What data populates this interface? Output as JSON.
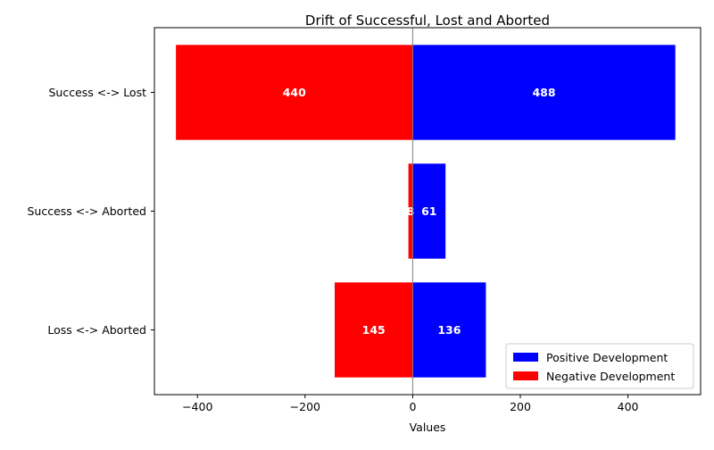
{
  "chart_data": {
    "type": "bar",
    "orientation": "horizontal",
    "title": "Drift of Successful, Lost and Aborted",
    "xlabel": "Values",
    "ylabel": "",
    "xlim": [
      -480,
      535
    ],
    "xticks": [
      -400,
      -200,
      0,
      200,
      400
    ],
    "xtick_labels": [
      "−400",
      "−200",
      "0",
      "200",
      "400"
    ],
    "categories": [
      "Success <-> Lost",
      "Success <-> Aborted",
      "Loss <-> Aborted"
    ],
    "series": [
      {
        "name": "Positive Development",
        "color": "#0000ff",
        "values": [
          488,
          61,
          136
        ],
        "labels": [
          "488",
          "61",
          "136"
        ]
      },
      {
        "name": "Negative Development",
        "color": "#ff0000",
        "values": [
          -440,
          -8,
          -145
        ],
        "labels": [
          "440",
          "8",
          "145"
        ]
      }
    ],
    "grid": false,
    "zero_line": true,
    "legend_position": "bottom-right"
  }
}
